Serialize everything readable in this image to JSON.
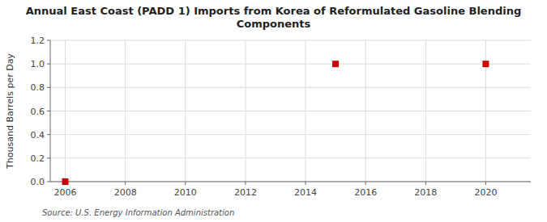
{
  "chart_data": {
    "type": "scatter",
    "title": "Annual East Coast (PADD 1) Imports from Korea of Reformulated Gasoline Blending\nComponents",
    "y_label": "Thousand Barrels per Day",
    "source": "Source: U.S. Energy Information Administration",
    "x": [
      2006,
      2015,
      2020
    ],
    "values": [
      0.0,
      1.0,
      1.0
    ],
    "color": "#cc0000",
    "marker": "square",
    "xlim": [
      2005.5,
      2021.5
    ],
    "ylim": [
      0.0,
      1.2
    ],
    "xticks": [
      2006,
      2008,
      2010,
      2012,
      2014,
      2016,
      2018,
      2020
    ],
    "yticks": [
      {
        "value": 0.0,
        "label": "0.0"
      },
      0.2,
      0.4,
      0.6,
      0.8,
      {
        "value": 1.0,
        "label": "1.0"
      },
      1.2
    ],
    "grid": true
  }
}
